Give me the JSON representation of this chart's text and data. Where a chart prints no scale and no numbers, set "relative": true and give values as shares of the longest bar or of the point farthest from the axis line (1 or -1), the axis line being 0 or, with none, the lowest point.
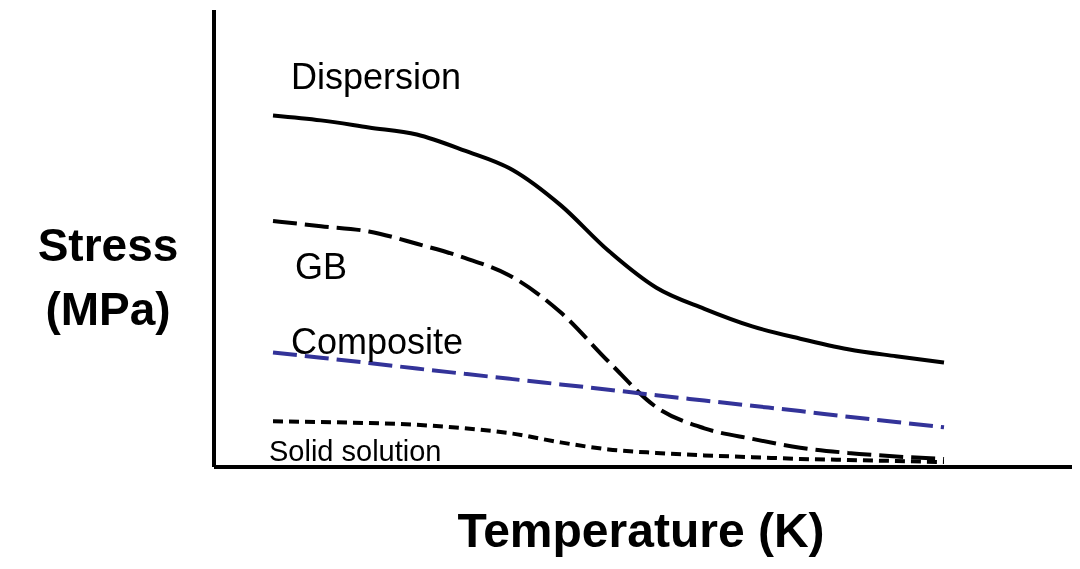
{
  "chart_data": {
    "type": "line",
    "relative": true,
    "xlabel": "Temperature (K)",
    "ylabel": "Stress (MPa)",
    "categories": [
      null,
      null,
      null,
      null,
      null,
      null,
      null,
      null,
      null,
      null,
      null,
      null,
      null,
      null,
      null
    ],
    "series": [
      {
        "name": "Dispersion",
        "color": "#000000",
        "line_style": "solid",
        "values": [
          1.0,
          0.986,
          0.966,
          0.946,
          0.9,
          0.845,
          0.745,
          0.615,
          0.51,
          0.45,
          0.4,
          0.365,
          0.335,
          0.315,
          0.297
        ]
      },
      {
        "name": "GB",
        "color": "#000000",
        "line_style": "dashed",
        "values": [
          0.7,
          0.685,
          0.67,
          0.635,
          0.595,
          0.54,
          0.44,
          0.3,
          0.17,
          0.11,
          0.08,
          0.055,
          0.04,
          0.03,
          0.023
        ]
      },
      {
        "name": "Composite",
        "color": "#333399",
        "line_style": "dashed",
        "values": [
          0.326,
          0.311,
          0.296,
          0.28,
          0.265,
          0.25,
          0.235,
          0.22,
          0.204,
          0.189,
          0.174,
          0.159,
          0.143,
          0.128,
          0.113
        ]
      },
      {
        "name": "Solid solution",
        "color": "#000000",
        "line_style": "dotted",
        "values": [
          0.13,
          0.128,
          0.125,
          0.12,
          0.11,
          0.095,
          0.07,
          0.05,
          0.04,
          0.033,
          0.028,
          0.023,
          0.02,
          0.017,
          0.014
        ]
      }
    ]
  }
}
